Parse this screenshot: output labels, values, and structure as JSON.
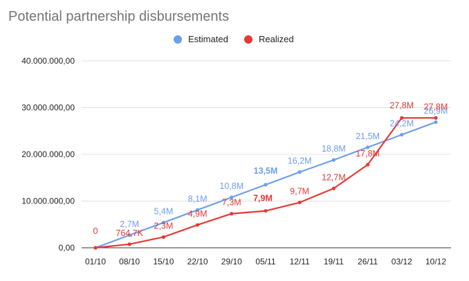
{
  "chart_data": {
    "type": "line",
    "title": "Potential partnership disbursements",
    "xlabel": "",
    "ylabel": "",
    "categories": [
      "01/10",
      "08/10",
      "15/10",
      "22/10",
      "29/10",
      "05/11",
      "12/11",
      "19/11",
      "26/11",
      "03/12",
      "10/12"
    ],
    "ylim": [
      0,
      40000000
    ],
    "yticks": [
      0,
      10000000,
      20000000,
      30000000,
      40000000
    ],
    "ytick_labels": [
      "0,00",
      "10.000.000,00",
      "20.000.000,00",
      "30.000.000,00",
      "40.000.000,00"
    ],
    "grid": true,
    "legend_position": "top",
    "series": [
      {
        "name": "Estimated",
        "color": "#6d9eeb",
        "values": [
          0,
          2700000,
          5400000,
          8100000,
          10800000,
          13500000,
          16200000,
          18800000,
          21500000,
          24200000,
          26900000
        ],
        "labels": [
          "",
          "2,7M",
          "5,4M",
          "8,1M",
          "10,8M",
          "13,5M",
          "16,2M",
          "18,8M",
          "21,5M",
          "24,2M",
          "26,9M"
        ],
        "highlight_index": 5
      },
      {
        "name": "Realized",
        "color": "#e53935",
        "values": [
          0,
          764700,
          2300000,
          4900000,
          7300000,
          7900000,
          9700000,
          12700000,
          17800000,
          27800000,
          27800000
        ],
        "labels": [
          "0",
          "764,7K",
          "2,3M",
          "4,9M",
          "7,3M",
          "7,9M",
          "9,7M",
          "12,7M",
          "17,8M",
          "27,8M",
          "27,8M"
        ],
        "highlight_index": 5
      }
    ]
  }
}
